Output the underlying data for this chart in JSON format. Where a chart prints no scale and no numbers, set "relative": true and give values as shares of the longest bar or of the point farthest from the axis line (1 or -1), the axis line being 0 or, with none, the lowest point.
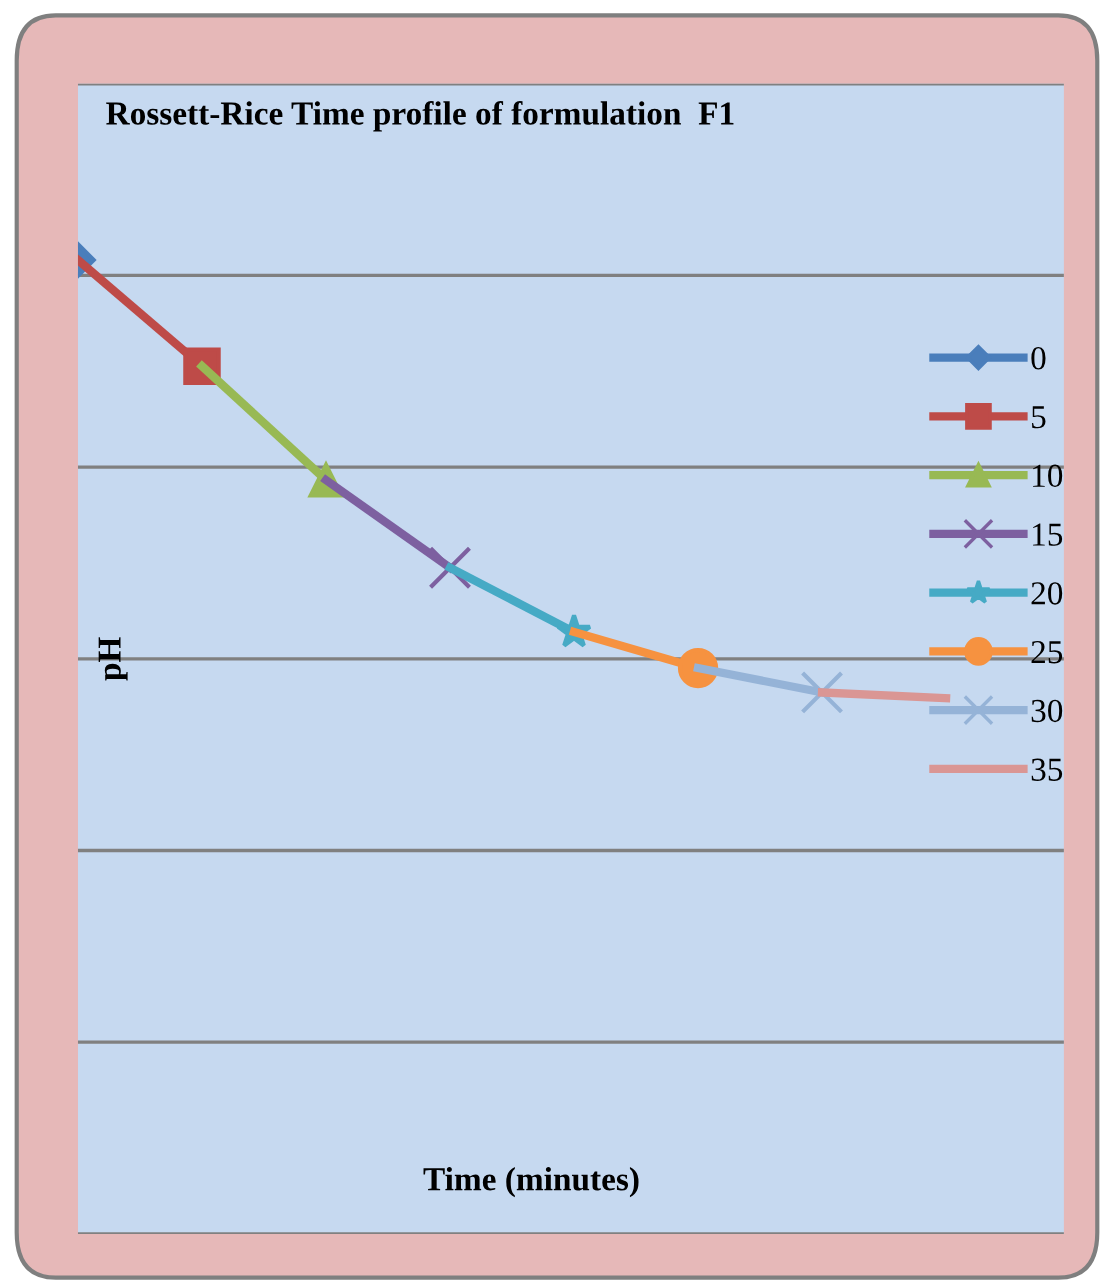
{
  "chart_data": {
    "type": "line",
    "title": "Rossett-Rice Time profile of formulation  F1",
    "xlabel": "Time (minutes)",
    "ylabel": "pH",
    "relative": true,
    "categories": [
      null,
      null,
      null,
      null,
      null,
      null,
      null,
      null
    ],
    "series": [
      {
        "name": "0",
        "color": "#4a7ebb",
        "marker": "diamond",
        "values": [
          1,
          null,
          null,
          null,
          null,
          null,
          null,
          null
        ]
      },
      {
        "name": "5",
        "color": "#be4b48",
        "marker": "square",
        "values": [
          1,
          0.891,
          null,
          null,
          null,
          null,
          null,
          null
        ]
      },
      {
        "name": "10",
        "color": "#98b954",
        "marker": "triangle",
        "values": [
          null,
          0.891,
          0.774,
          null,
          null,
          null,
          null,
          null
        ]
      },
      {
        "name": "15",
        "color": "#7d60a0",
        "marker": "cross",
        "values": [
          null,
          null,
          0.774,
          0.684,
          null,
          null,
          null,
          null
        ]
      },
      {
        "name": "20",
        "color": "#46aac5",
        "marker": "star",
        "values": [
          null,
          null,
          null,
          0.684,
          0.618,
          null,
          null,
          null
        ]
      },
      {
        "name": "25",
        "color": "#f69240",
        "marker": "circle",
        "values": [
          null,
          null,
          null,
          null,
          0.618,
          0.581,
          null,
          null
        ]
      },
      {
        "name": "30",
        "color": "#95b3d7",
        "marker": "cross",
        "values": [
          null,
          null,
          null,
          null,
          null,
          0.581,
          0.556,
          null
        ]
      },
      {
        "name": "35",
        "color": "#da9694",
        "marker": "none",
        "values": [
          null,
          null,
          null,
          null,
          null,
          null,
          0.556,
          0.55
        ]
      }
    ],
    "grid": "y",
    "legend": "right",
    "line_style": "solid"
  }
}
